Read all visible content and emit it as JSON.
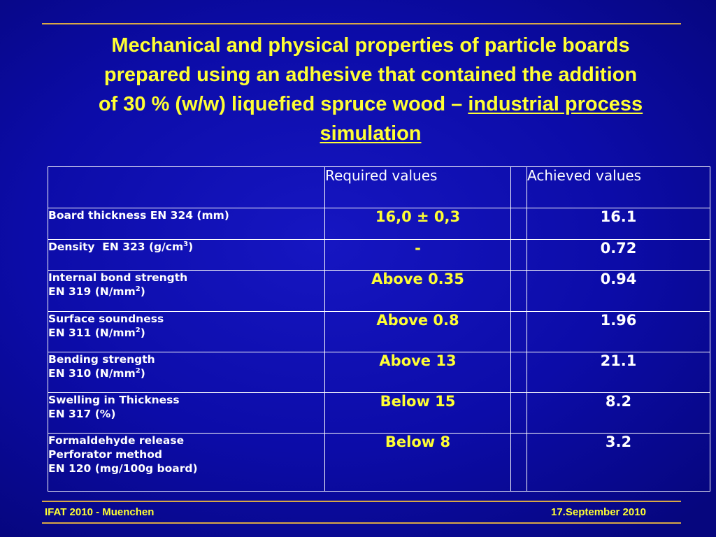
{
  "title": {
    "line1": "Mechanical and physical properties of particle boards",
    "line2": "prepared using an adhesive that contained the addition",
    "line3_plain": "of 30 % (w/w) liquefied spruce wood – ",
    "line3_underlined": "industrial process",
    "line4_underlined": "simulation"
  },
  "table": {
    "headers": [
      "",
      "Required values",
      "",
      "Achieved values"
    ],
    "rows": [
      {
        "property": [
          "Board thickness EN 324 (mm)"
        ],
        "required": "16,0 ± 0,3",
        "achieved": "16.1"
      },
      {
        "property": [
          "Density  EN 323 (g/cm",
          "3",
          ")"
        ],
        "required": "-",
        "achieved": "0.72"
      },
      {
        "property": [
          "Internal bond strength",
          "EN 319 (N/mm",
          "2",
          ")"
        ],
        "required": "Above 0.35",
        "achieved": "0.94"
      },
      {
        "property": [
          "Surface soundness",
          "EN 311 (N/mm",
          "2",
          ")"
        ],
        "required": "Above 0.8",
        "achieved": "1.96"
      },
      {
        "property": [
          "Bending strength",
          "EN 310 (N/mm",
          "2",
          ")"
        ],
        "required": "Above 13",
        "achieved": "21.1"
      },
      {
        "property": [
          "Swelling in Thickness",
          "EN 317 (%)"
        ],
        "required": "Below 15",
        "achieved": "8.2"
      },
      {
        "property": [
          "Formaldehyde release",
          "Perforator method",
          "EN 120 (mg/100g board)"
        ],
        "required": "Below 8",
        "achieved": "3.2"
      }
    ]
  },
  "footer": {
    "left": "IFAT 2010 - Muenchen",
    "right": "17.September 2010"
  },
  "colors": {
    "background": "#0c0ca8",
    "title": "#ffff33",
    "rule": "#d9a845",
    "required_values": "#ffff33",
    "achieved_values": "#ffffff"
  }
}
